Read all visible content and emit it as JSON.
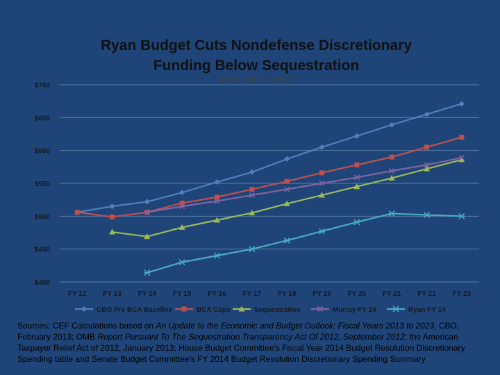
{
  "chart_data": {
    "type": "line",
    "title_lines": [
      "Ryan Budget Cuts Nondefense Discretionary",
      "Funding Below Sequestration"
    ],
    "subtitle": "Budget Authority in Billions",
    "categories": [
      "FY 12",
      "FY 13",
      "FY 14",
      "FY 15",
      "FY 16",
      "FY 17",
      "FY 18",
      "FY 19",
      "FY 20",
      "FY 21",
      "FY 22",
      "FY 23"
    ],
    "y_ticks": [
      "$700",
      "$650",
      "$600",
      "$550",
      "$500",
      "$450",
      "$400"
    ],
    "ylim": [
      400,
      700
    ],
    "grid": true,
    "legend_position": "bottom",
    "series": [
      {
        "name": "CBO Pre BCA Baseline",
        "color": "#4f81bd",
        "marker": "diamond",
        "values": [
          506,
          515,
          522,
          536,
          552,
          567,
          587,
          605,
          622,
          639,
          655,
          671
        ]
      },
      {
        "name": "BCA Caps",
        "color": "#c0504d",
        "marker": "square",
        "values": [
          506,
          499,
          506,
          520,
          529,
          541,
          553,
          566,
          578,
          590,
          605,
          620
        ]
      },
      {
        "name": "Sequestration",
        "color": "#9bbb59",
        "marker": "triangle",
        "values": [
          null,
          476,
          469,
          483,
          494,
          505,
          519,
          532,
          545,
          558,
          572,
          586
        ]
      },
      {
        "name": "Murray FY 14",
        "color": "#8064a2",
        "marker": "x",
        "values": [
          null,
          null,
          506,
          515,
          523,
          532,
          541,
          550,
          559,
          569,
          578,
          589
        ]
      },
      {
        "name": "Ryan FY 14",
        "color": "#4bacc6",
        "marker": "star",
        "values": [
          null,
          null,
          414,
          430,
          440,
          450,
          463,
          477,
          491,
          504,
          502,
          500
        ]
      }
    ]
  },
  "sources": {
    "prefix": "Sources:  CEF Calculations based on ",
    "title1": "An Update to the Economic and Budget Outlook: Fiscal Years 2013 to 2023",
    "part2": ", CBO, February 2013; OMB ",
    "title2": "Report Pursuant To The Sequestration Transparency Act Of 2012, September 2012",
    "part3": "; the American Taxpayer Relief Act of 2012, January 2013; House Budget Committee's Fiscal Year 2014 Budget Resolution Discretionary Spending table and Senate Budget Committee's FY 2014 Budget Resolution Discretionary Spending Summary"
  }
}
